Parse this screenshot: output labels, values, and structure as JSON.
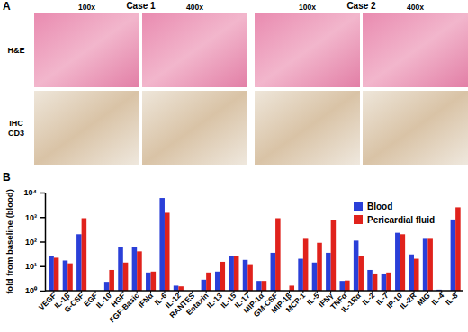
{
  "panel_labels": [
    "A",
    "B"
  ],
  "panel_a": {
    "cases": [
      "Case 1",
      "Case 2"
    ],
    "magnifications": [
      "100x",
      "400x",
      "100x",
      "400x"
    ],
    "rows": [
      [
        "H&E"
      ],
      [
        "IHC",
        "CD3"
      ]
    ]
  },
  "chart_data": {
    "type": "bar",
    "y_label": "fold from baseline (blood)",
    "categories": [
      "VEGF",
      "IL-1β",
      "G-CSF",
      "EGF",
      "IL-10",
      "HGF",
      "FGF-Basic",
      "IFNα",
      "IL-6",
      "IL-12",
      "RANTES",
      "Eotaxin",
      "IL-13",
      "IL-15",
      "IL-17",
      "MIP-1α",
      "GM-CSF",
      "MIP-1β",
      "MCP-1",
      "IL-5",
      "IFNγ",
      "TNFα",
      "IL-1Rα",
      "IL-2",
      "IL-7",
      "IP-10",
      "IL-2R",
      "MIG",
      "IL-4",
      "IL-8"
    ],
    "series": [
      {
        "name": "Blood",
        "color": "#2a3fd8",
        "values": [
          25,
          17,
          200,
          1,
          2.3,
          60,
          60,
          5.5,
          6000,
          1.6,
          1,
          2.8,
          6,
          27,
          18,
          2.5,
          35,
          1,
          20,
          14,
          35,
          2.5,
          110,
          7,
          5,
          230,
          30,
          130,
          1.1,
          800
        ]
      },
      {
        "name": "Pericardial fluid",
        "color": "#e0221c",
        "values": [
          22,
          13,
          900,
          1,
          7,
          14,
          40,
          6,
          1500,
          1.5,
          1,
          5.5,
          15,
          25,
          12,
          2.5,
          900,
          1.6,
          130,
          90,
          750,
          2.6,
          25,
          5,
          5.5,
          200,
          20,
          130,
          1,
          2500
        ]
      }
    ],
    "log": "y",
    "legend": "top-right",
    "ylim": [
      1,
      10000
    ],
    "yticks": [
      {
        "value": 1,
        "label": "10⁰"
      },
      {
        "value": 10,
        "label": "10¹"
      },
      {
        "value": 100,
        "label": "10²"
      },
      {
        "value": 1000,
        "label": "10³"
      },
      {
        "value": 10000,
        "label": "10⁴"
      }
    ]
  }
}
